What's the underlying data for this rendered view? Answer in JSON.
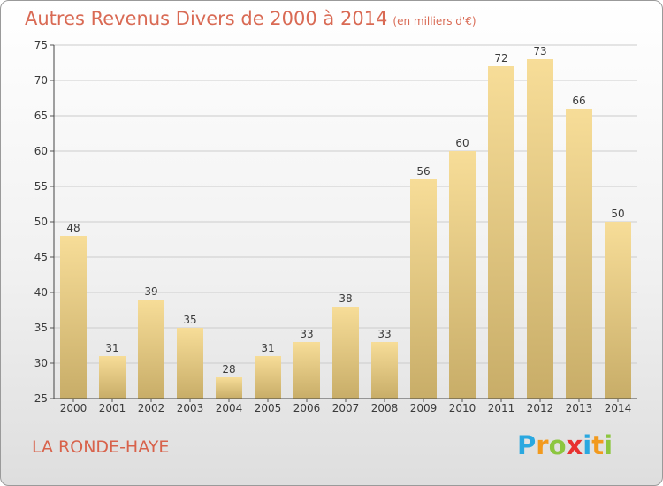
{
  "title": "Autres Revenus Divers de 2000 à 2014",
  "title_unit": "(en milliers d'€)",
  "commune": "LA RONDE-HAYE",
  "logo": {
    "letters": [
      "P",
      "r",
      "o",
      "x",
      "i",
      "t",
      "i"
    ],
    "colors": [
      "#2aa8e0",
      "#f29a1e",
      "#8cc63f",
      "#e8312f",
      "#2aa8e0",
      "#f29a1e",
      "#8cc63f"
    ]
  },
  "colors": {
    "title": "#d96a54",
    "bar_top": "#f7dd98",
    "bar_bottom": "#c8ad68",
    "grid": "#cccccc"
  },
  "chart_data": {
    "type": "bar",
    "categories": [
      "2000",
      "2001",
      "2002",
      "2003",
      "2004",
      "2005",
      "2006",
      "2007",
      "2008",
      "2009",
      "2010",
      "2011",
      "2012",
      "2013",
      "2014"
    ],
    "values": [
      48,
      31,
      39,
      35,
      28,
      31,
      33,
      38,
      33,
      56,
      60,
      72,
      73,
      66,
      50
    ],
    "title": "Autres Revenus Divers de 2000 à 2014",
    "xlabel": "",
    "ylabel": "",
    "ylim": [
      25,
      75
    ],
    "yticks": [
      25,
      30,
      35,
      40,
      45,
      50,
      55,
      60,
      65,
      70,
      75
    ],
    "grid": true,
    "data_labels": true
  }
}
